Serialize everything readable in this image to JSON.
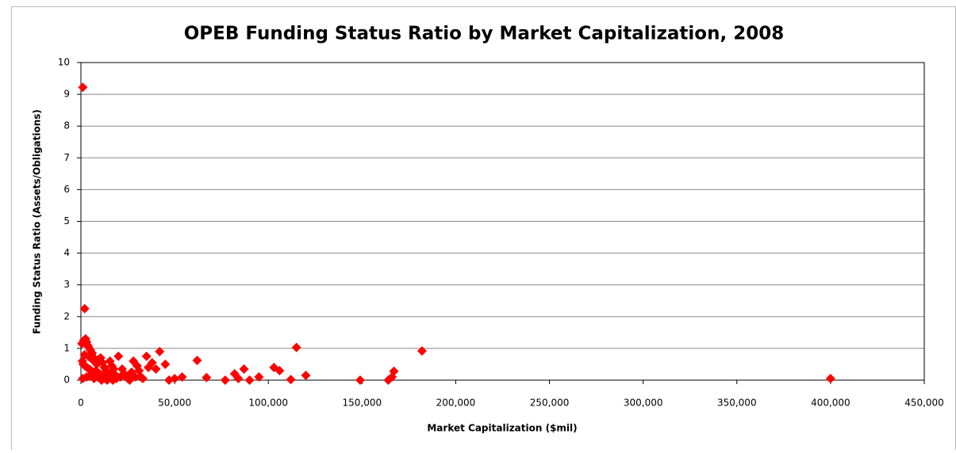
{
  "chart_data": {
    "type": "scatter",
    "title": "OPEB Funding Status Ratio by Market Capitalization, 2008",
    "x_label": "Market Capitalization  ($mil)",
    "y_label": "Funding Status Ratio  (Assets/Obligations)",
    "color": "#ff0000",
    "grid": true,
    "xlim": [
      0,
      450000
    ],
    "xticks": [
      0,
      {
        "value": 50000,
        "label": "50,000"
      },
      {
        "value": 100000,
        "label": "100,000"
      },
      {
        "value": 150000,
        "label": "150,000"
      },
      {
        "value": 200000,
        "label": "200,000"
      },
      {
        "value": 250000,
        "label": "250,000"
      },
      {
        "value": 300000,
        "label": "300,000"
      },
      {
        "value": 350000,
        "label": "350,000"
      },
      {
        "value": 400000,
        "label": "400,000"
      },
      {
        "value": 450000,
        "label": "450,000"
      }
    ],
    "ylim": [
      0,
      10
    ],
    "yticks": [
      0,
      1,
      2,
      3,
      4,
      5,
      6,
      7,
      8,
      9,
      10
    ],
    "x": [
      1000,
      2000,
      500,
      1500,
      2500,
      3000,
      3500,
      4000,
      5000,
      6000,
      7000,
      800,
      1200,
      2200,
      3200,
      4500,
      5500,
      6500,
      7500,
      8500,
      9500,
      10500,
      11500,
      12500,
      13500,
      14500,
      15500,
      16500,
      17500,
      18500,
      19500,
      1000,
      3000,
      5000,
      7000,
      9000,
      11000,
      13000,
      15000,
      17000,
      19000,
      21000,
      23000,
      25000,
      27000,
      29000,
      31000,
      33000,
      2000,
      4000,
      6000,
      8000,
      10000,
      12000,
      14000,
      16000,
      18000,
      22000,
      24000,
      26000,
      30000,
      32000,
      36000,
      38000,
      40000,
      20000,
      28000,
      35000,
      42000,
      45000,
      47000,
      50000,
      54000,
      62000,
      67000,
      77000,
      82000,
      84000,
      87000,
      90000,
      95000,
      103000,
      106000,
      112000,
      115000,
      120000,
      149000,
      164000,
      166000,
      167000,
      182000,
      400000
    ],
    "y": [
      9.22,
      2.25,
      1.15,
      1.25,
      1.3,
      1.2,
      1.1,
      1.05,
      0.95,
      0.85,
      0.7,
      0.6,
      0.5,
      0.45,
      0.4,
      0.35,
      0.3,
      0.25,
      0.2,
      0.5,
      0.65,
      0.7,
      0.55,
      0.4,
      0.3,
      0.2,
      0.6,
      0.45,
      0.35,
      0.15,
      0.1,
      0.05,
      0.1,
      0.15,
      0.05,
      0.1,
      0.0,
      0.05,
      0.1,
      0.0,
      0.05,
      0.1,
      0.2,
      0.05,
      0.25,
      0.1,
      0.3,
      0.05,
      0.8,
      0.75,
      0.65,
      0.3,
      0.2,
      0.1,
      0.0,
      0.25,
      0.05,
      0.35,
      0.15,
      0.0,
      0.45,
      0.1,
      0.4,
      0.55,
      0.35,
      0.75,
      0.6,
      0.75,
      0.9,
      0.5,
      0.0,
      0.05,
      0.1,
      0.62,
      0.08,
      0.0,
      0.2,
      0.05,
      0.35,
      0.0,
      0.1,
      0.4,
      0.3,
      0.02,
      1.03,
      0.15,
      0.0,
      0.0,
      0.1,
      0.28,
      0.92,
      0.05
    ]
  }
}
